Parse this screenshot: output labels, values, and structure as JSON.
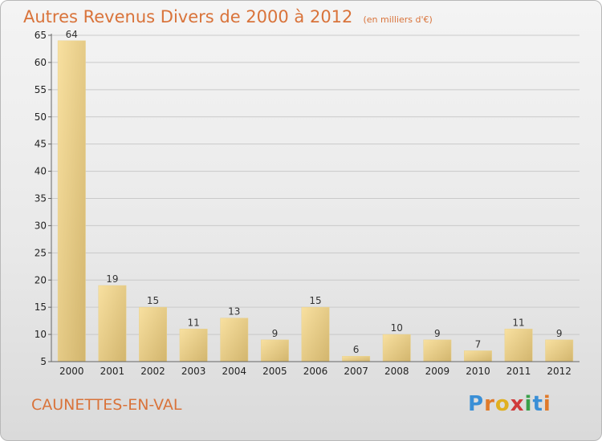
{
  "header": {
    "title": "Autres Revenus Divers de 2000 à 2012",
    "subtitle": "(en milliers d'€)"
  },
  "footer": {
    "location": "CAUNETTES-EN-VAL",
    "logo_text": "Proxiti"
  },
  "colors": {
    "title": "#d9733a",
    "bar_light": "#f8e0a0",
    "bar_dark": "#d2b56d",
    "logo": [
      "#3a8fd6",
      "#e07a2a",
      "#e0b020",
      "#d03a3a",
      "#3aa04a",
      "#3a8fd6",
      "#e07a2a"
    ]
  },
  "chart_data": {
    "type": "bar",
    "categories": [
      "2000",
      "2001",
      "2002",
      "2003",
      "2004",
      "2005",
      "2006",
      "2007",
      "2008",
      "2009",
      "2010",
      "2011",
      "2012"
    ],
    "values": [
      64,
      19,
      15,
      11,
      13,
      9,
      15,
      6,
      10,
      9,
      7,
      11,
      9
    ],
    "ylim": [
      5,
      65
    ],
    "yticks": [
      5,
      10,
      15,
      20,
      25,
      30,
      35,
      40,
      45,
      50,
      55,
      60,
      65
    ],
    "grid": true,
    "legend": "none"
  }
}
